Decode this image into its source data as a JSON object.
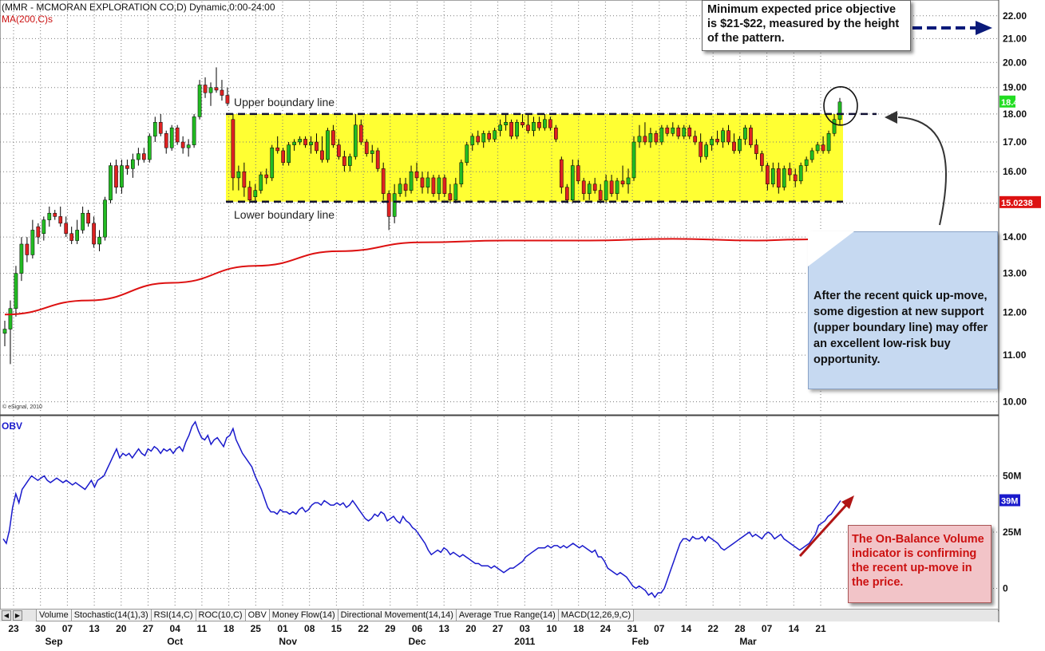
{
  "chart_data": {
    "type": "candlestick",
    "title": "(MMR - MCMORAN EXPLORATION CO,D) Dynamic,0:00-24:00",
    "ma_label": "MA(200,C)s",
    "copyright": "© eSignal, 2010",
    "price_axis": {
      "ticks": [
        "22.00",
        "21.00",
        "20.00",
        "19.00",
        "18.00",
        "17.00",
        "16.00",
        "15.00",
        "14.00",
        "13.00",
        "12.00",
        "11.00",
        "10.00"
      ],
      "log_scale": true,
      "ylim": [
        9.8,
        22.5
      ]
    },
    "last_price": "18.45",
    "ma_value": "15.0238",
    "upper_label": "Upper boundary line",
    "lower_label": "Lower boundary line",
    "upper_boundary": 18.0,
    "lower_boundary": 15.05,
    "date_ticks": [
      "23",
      "30",
      "07",
      "13",
      "20",
      "27",
      "04",
      "11",
      "18",
      "25",
      "01",
      "08",
      "15",
      "22",
      "29",
      "06",
      "13",
      "20",
      "27",
      "03",
      "10",
      "18",
      "24",
      "31",
      "07",
      "14",
      "22",
      "28",
      "07",
      "14",
      "21"
    ],
    "month_labels": [
      {
        "label": "Sep",
        "tick_index": 1.5
      },
      {
        "label": "Oct",
        "tick_index": 6
      },
      {
        "label": "Nov",
        "tick_index": 10.2
      },
      {
        "label": "Dec",
        "tick_index": 15
      },
      {
        "label": "2011",
        "tick_index": 19
      },
      {
        "label": "Feb",
        "tick_index": 23.3
      },
      {
        "label": "Mar",
        "tick_index": 27.3
      }
    ],
    "candles": [
      [
        11.5,
        11.8,
        11.2,
        11.6
      ],
      [
        11.6,
        12.3,
        10.8,
        12.1
      ],
      [
        12.1,
        13.2,
        11.9,
        13.0
      ],
      [
        13.0,
        14.0,
        12.8,
        13.8
      ],
      [
        13.8,
        14.0,
        13.3,
        13.5
      ],
      [
        13.5,
        14.5,
        13.4,
        14.2
      ],
      [
        14.3,
        14.4,
        13.8,
        14.0
      ],
      [
        14.1,
        14.6,
        13.9,
        14.5
      ],
      [
        14.5,
        14.9,
        14.3,
        14.7
      ],
      [
        14.7,
        14.8,
        14.5,
        14.6
      ],
      [
        14.6,
        14.9,
        14.3,
        14.4
      ],
      [
        14.4,
        14.6,
        14.0,
        14.1
      ],
      [
        14.1,
        14.3,
        13.8,
        13.9
      ],
      [
        13.9,
        14.5,
        13.8,
        14.2
      ],
      [
        14.2,
        14.9,
        14.1,
        14.7
      ],
      [
        14.7,
        14.8,
        14.3,
        14.4
      ],
      [
        14.4,
        14.6,
        13.7,
        13.8
      ],
      [
        13.8,
        14.2,
        13.6,
        14.0
      ],
      [
        14.0,
        15.2,
        13.9,
        15.1
      ],
      [
        15.1,
        16.3,
        15.0,
        16.2
      ],
      [
        16.2,
        16.4,
        15.3,
        15.5
      ],
      [
        15.5,
        16.4,
        15.3,
        16.2
      ],
      [
        16.2,
        16.4,
        15.9,
        16.1
      ],
      [
        16.1,
        16.6,
        15.8,
        16.4
      ],
      [
        16.4,
        16.8,
        16.2,
        16.6
      ],
      [
        16.6,
        16.8,
        16.3,
        16.4
      ],
      [
        16.4,
        17.3,
        16.3,
        17.2
      ],
      [
        17.2,
        17.9,
        17.0,
        17.7
      ],
      [
        17.7,
        18.0,
        17.2,
        17.3
      ],
      [
        17.3,
        17.4,
        16.6,
        16.8
      ],
      [
        16.8,
        17.6,
        16.7,
        17.5
      ],
      [
        17.5,
        17.6,
        16.9,
        17.0
      ],
      [
        17.0,
        17.2,
        16.6,
        16.8
      ],
      [
        16.8,
        17.1,
        16.5,
        16.9
      ],
      [
        16.9,
        18.0,
        16.8,
        17.9
      ],
      [
        17.9,
        19.3,
        17.8,
        19.1
      ],
      [
        19.1,
        19.4,
        18.6,
        18.8
      ],
      [
        18.8,
        19.2,
        18.3,
        19.0
      ],
      [
        19.0,
        19.8,
        18.8,
        18.9
      ],
      [
        18.9,
        19.3,
        18.5,
        18.7
      ],
      [
        18.7,
        19.0,
        18.3,
        18.4
      ],
      [
        17.8,
        18.0,
        15.4,
        15.8
      ],
      [
        15.8,
        16.2,
        15.4,
        16.0
      ],
      [
        16.0,
        16.3,
        15.2,
        15.5
      ],
      [
        15.5,
        15.7,
        15.0,
        15.1
      ],
      [
        15.2,
        15.6,
        15.0,
        15.4
      ],
      [
        15.4,
        16.0,
        15.3,
        15.9
      ],
      [
        15.9,
        16.1,
        15.6,
        15.8
      ],
      [
        15.8,
        16.9,
        15.7,
        16.8
      ],
      [
        16.8,
        17.2,
        16.6,
        16.7
      ],
      [
        16.7,
        16.8,
        16.2,
        16.3
      ],
      [
        16.3,
        17.0,
        16.2,
        16.9
      ],
      [
        16.9,
        17.1,
        16.7,
        17.0
      ],
      [
        17.0,
        17.2,
        16.9,
        17.1
      ],
      [
        17.1,
        17.2,
        16.8,
        16.9
      ],
      [
        16.9,
        17.2,
        16.6,
        17.0
      ],
      [
        17.0,
        17.3,
        16.6,
        16.7
      ],
      [
        16.7,
        17.2,
        16.3,
        16.4
      ],
      [
        16.4,
        17.5,
        16.3,
        17.4
      ],
      [
        17.4,
        17.6,
        16.8,
        16.9
      ],
      [
        16.9,
        17.1,
        16.4,
        16.5
      ],
      [
        16.5,
        16.7,
        16.0,
        16.2
      ],
      [
        16.2,
        16.6,
        16.0,
        16.5
      ],
      [
        16.5,
        18.0,
        16.4,
        17.6
      ],
      [
        17.6,
        17.8,
        16.9,
        17.0
      ],
      [
        17.0,
        17.1,
        16.5,
        16.6
      ],
      [
        16.6,
        16.9,
        16.3,
        16.7
      ],
      [
        16.7,
        16.8,
        16.0,
        16.1
      ],
      [
        16.1,
        16.3,
        15.1,
        15.3
      ],
      [
        15.3,
        15.4,
        14.2,
        14.6
      ],
      [
        14.6,
        15.6,
        14.4,
        15.3
      ],
      [
        15.3,
        15.8,
        15.2,
        15.6
      ],
      [
        15.6,
        15.8,
        15.2,
        15.4
      ],
      [
        15.4,
        16.2,
        15.3,
        16.0
      ],
      [
        16.0,
        16.3,
        15.7,
        15.8
      ],
      [
        15.8,
        16.0,
        15.3,
        15.5
      ],
      [
        15.5,
        16.0,
        15.3,
        15.8
      ],
      [
        15.8,
        15.9,
        15.2,
        15.3
      ],
      [
        15.3,
        15.9,
        15.1,
        15.8
      ],
      [
        15.8,
        15.9,
        15.2,
        15.3
      ],
      [
        15.3,
        15.6,
        15.0,
        15.1
      ],
      [
        15.1,
        15.8,
        15.0,
        15.6
      ],
      [
        15.6,
        16.4,
        15.5,
        16.3
      ],
      [
        16.3,
        17.0,
        16.2,
        16.9
      ],
      [
        16.9,
        17.3,
        16.7,
        17.2
      ],
      [
        17.2,
        17.4,
        16.9,
        17.0
      ],
      [
        17.0,
        17.4,
        16.8,
        17.3
      ],
      [
        17.3,
        17.4,
        17.0,
        17.1
      ],
      [
        17.1,
        17.5,
        17.0,
        17.4
      ],
      [
        17.4,
        17.8,
        17.2,
        17.6
      ],
      [
        17.6,
        18.0,
        17.4,
        17.7
      ],
      [
        17.7,
        17.8,
        17.1,
        17.2
      ],
      [
        17.2,
        17.8,
        17.1,
        17.7
      ],
      [
        17.7,
        18.0,
        17.5,
        17.6
      ],
      [
        17.6,
        18.0,
        17.3,
        17.4
      ],
      [
        17.4,
        17.9,
        17.2,
        17.7
      ],
      [
        17.7,
        17.9,
        17.4,
        17.5
      ],
      [
        17.5,
        18.0,
        17.4,
        17.8
      ],
      [
        17.8,
        17.9,
        17.4,
        17.5
      ],
      [
        17.5,
        17.6,
        17.0,
        17.1
      ],
      [
        16.4,
        16.5,
        15.3,
        15.5
      ],
      [
        15.5,
        15.6,
        15.0,
        15.1
      ],
      [
        15.1,
        16.4,
        15.0,
        16.2
      ],
      [
        16.2,
        16.4,
        15.6,
        15.7
      ],
      [
        15.7,
        15.8,
        15.1,
        15.3
      ],
      [
        15.3,
        15.7,
        15.1,
        15.6
      ],
      [
        15.6,
        15.8,
        15.3,
        15.4
      ],
      [
        15.4,
        15.6,
        15.0,
        15.1
      ],
      [
        15.1,
        15.9,
        15.0,
        15.7
      ],
      [
        15.7,
        15.9,
        15.2,
        15.3
      ],
      [
        15.3,
        15.8,
        15.1,
        15.7
      ],
      [
        15.7,
        16.2,
        15.5,
        15.6
      ],
      [
        15.6,
        16.1,
        15.3,
        15.8
      ],
      [
        15.8,
        17.2,
        15.7,
        17.0
      ],
      [
        17.0,
        17.6,
        16.8,
        17.2
      ],
      [
        17.2,
        17.7,
        16.9,
        17.0
      ],
      [
        17.0,
        17.5,
        16.8,
        17.3
      ],
      [
        17.3,
        17.4,
        16.9,
        17.0
      ],
      [
        17.0,
        17.6,
        16.9,
        17.5
      ],
      [
        17.5,
        17.6,
        17.2,
        17.3
      ],
      [
        17.3,
        17.7,
        17.2,
        17.5
      ],
      [
        17.5,
        17.6,
        17.1,
        17.2
      ],
      [
        17.2,
        17.6,
        17.1,
        17.5
      ],
      [
        17.5,
        17.6,
        17.1,
        17.2
      ],
      [
        17.2,
        17.4,
        16.9,
        17.0
      ],
      [
        17.0,
        17.3,
        16.3,
        16.5
      ],
      [
        16.5,
        17.0,
        16.4,
        16.9
      ],
      [
        16.9,
        17.2,
        16.7,
        17.1
      ],
      [
        17.1,
        17.4,
        16.9,
        17.0
      ],
      [
        17.0,
        17.5,
        16.8,
        17.4
      ],
      [
        17.4,
        17.6,
        16.9,
        17.0
      ],
      [
        17.0,
        17.3,
        16.6,
        16.7
      ],
      [
        16.7,
        17.2,
        16.6,
        17.1
      ],
      [
        17.1,
        17.6,
        16.9,
        17.5
      ],
      [
        17.5,
        17.6,
        16.8,
        16.9
      ],
      [
        16.9,
        17.1,
        16.4,
        16.6
      ],
      [
        16.6,
        16.7,
        16.0,
        16.2
      ],
      [
        16.2,
        16.3,
        15.4,
        15.6
      ],
      [
        15.6,
        16.3,
        15.5,
        16.1
      ],
      [
        16.1,
        16.3,
        15.3,
        15.5
      ],
      [
        15.5,
        16.2,
        15.4,
        16.1
      ],
      [
        16.1,
        16.3,
        15.7,
        15.9
      ],
      [
        15.9,
        16.1,
        15.5,
        15.7
      ],
      [
        15.7,
        16.3,
        15.6,
        16.2
      ],
      [
        16.2,
        16.5,
        16.0,
        16.4
      ],
      [
        16.4,
        16.8,
        16.3,
        16.7
      ],
      [
        16.7,
        17.0,
        16.6,
        16.9
      ],
      [
        16.9,
        17.2,
        16.6,
        16.7
      ],
      [
        16.7,
        17.4,
        16.6,
        17.3
      ],
      [
        17.3,
        18.0,
        17.2,
        17.8
      ],
      [
        17.8,
        18.6,
        17.6,
        18.45
      ]
    ],
    "ma200": [
      [
        0,
        11.95
      ],
      [
        0.1,
        12.3
      ],
      [
        0.2,
        12.75
      ],
      [
        0.3,
        13.2
      ],
      [
        0.4,
        13.6
      ],
      [
        0.5,
        13.85
      ],
      [
        0.6,
        13.9
      ],
      [
        0.7,
        13.9
      ],
      [
        0.8,
        13.95
      ],
      [
        0.9,
        13.9
      ],
      [
        0.95,
        13.93
      ],
      [
        1.0,
        13.97
      ]
    ],
    "annotations": {
      "objective": "Minimum expected price objective is $21-$22, measured by the height of the pattern.",
      "note": "After the recent quick up-move, some digestion at new support (upper boundary line) may offer an excellent low-risk buy opportunity.",
      "obv_note": "The On-Balance Volume indicator is confirming the recent up-move in the price."
    },
    "obv": {
      "label": "OBV",
      "ticks": [
        "50M",
        "25M",
        "0"
      ],
      "last_value": "39M",
      "ylim": [
        -8,
        75
      ],
      "values": [
        22,
        20,
        26,
        36,
        42,
        38,
        44,
        46,
        48,
        50,
        49,
        48,
        49,
        50,
        48,
        47,
        48,
        49,
        48,
        47,
        48,
        47,
        46,
        47,
        46,
        45,
        44,
        46,
        48,
        45,
        48,
        49,
        50,
        53,
        56,
        59,
        62,
        58,
        60,
        59,
        60,
        58,
        60,
        62,
        60,
        59,
        62,
        61,
        63,
        62,
        60,
        62,
        61,
        62,
        60,
        62,
        63,
        61,
        65,
        68,
        72,
        74,
        70,
        67,
        66,
        68,
        64,
        66,
        67,
        65,
        63,
        67,
        68,
        71,
        66,
        63,
        60,
        58,
        56,
        54,
        50,
        47,
        44,
        40,
        36,
        34,
        34,
        33,
        35,
        34,
        34,
        33,
        34,
        33,
        35,
        36,
        34,
        35,
        37,
        38,
        38,
        37,
        39,
        38,
        37,
        37,
        38,
        37,
        38,
        36,
        37,
        39,
        37,
        35,
        33,
        31,
        30,
        31,
        33,
        32,
        34,
        33,
        30,
        31,
        32,
        30,
        29,
        32,
        30,
        29,
        27,
        26,
        24,
        22,
        20,
        17,
        15,
        16,
        17,
        16,
        18,
        17,
        15,
        16,
        15,
        14,
        15,
        14,
        13,
        12,
        11,
        11,
        10,
        10,
        10,
        9,
        10,
        9,
        8,
        7,
        8,
        9,
        9,
        10,
        11,
        12,
        14,
        15,
        16,
        17,
        18,
        18,
        18,
        19,
        18,
        19,
        19,
        18,
        19,
        18,
        19,
        20,
        19,
        18,
        19,
        18,
        17,
        16,
        17,
        14,
        14,
        12,
        9,
        8,
        7,
        6,
        7,
        6,
        5,
        3,
        1,
        0,
        1,
        0,
        -1,
        -3,
        -2,
        -4,
        -2,
        -2,
        0,
        4,
        8,
        12,
        16,
        20,
        22,
        22,
        21,
        23,
        22,
        22,
        23,
        21,
        23,
        22,
        21,
        20,
        18,
        17,
        18,
        19,
        20,
        21,
        22,
        23,
        24,
        25,
        23,
        24,
        23,
        22,
        24,
        25,
        24,
        22,
        23,
        24,
        22,
        21,
        20,
        19,
        18,
        17,
        18,
        19,
        20,
        22,
        24,
        28,
        29,
        30,
        32,
        33,
        35,
        37,
        39
      ]
    }
  },
  "tabs": [
    "Volume",
    "Stochastic(14(1),3)",
    "RSI(14,C)",
    "ROC(10,C)",
    "OBV",
    "Money Flow(14)",
    "Directional Movement(14,14)",
    "Average True Range(14)",
    "MACD(12,26,9,C)"
  ],
  "active_tab": "OBV",
  "colors": {
    "up": "#22bb22",
    "down": "#dd2222",
    "band": "#ffff33",
    "ma": "#dd1111",
    "obv": "#1a1acc",
    "grid": "#7a7a7a"
  }
}
